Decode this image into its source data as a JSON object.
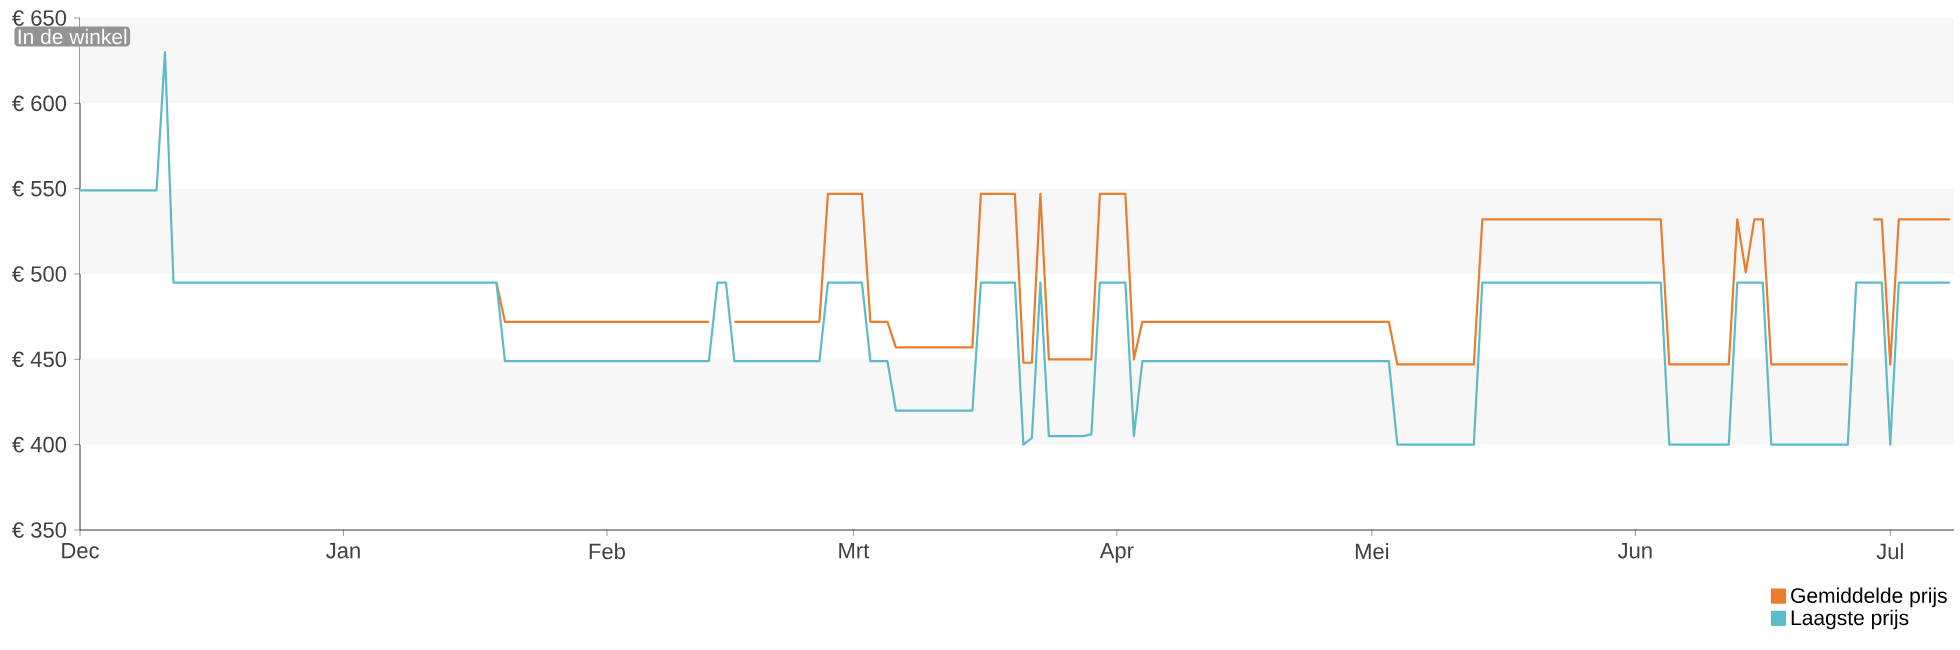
{
  "chart_data": {
    "type": "line",
    "annotations": [
      "In de winkel"
    ],
    "categories": [
      "Dec",
      null,
      null,
      null,
      null,
      null,
      null,
      null,
      null,
      null,
      null,
      null,
      null,
      null,
      null,
      null,
      null,
      null,
      null,
      null,
      null,
      null,
      null,
      null,
      null,
      null,
      null,
      null,
      null,
      null,
      null,
      "Jan",
      null,
      null,
      null,
      null,
      null,
      null,
      null,
      null,
      null,
      null,
      null,
      null,
      null,
      null,
      null,
      null,
      null,
      null,
      null,
      null,
      null,
      null,
      null,
      null,
      null,
      null,
      null,
      null,
      null,
      null,
      "Feb",
      null,
      null,
      null,
      null,
      null,
      null,
      null,
      null,
      null,
      null,
      null,
      null,
      null,
      null,
      null,
      null,
      null,
      null,
      null,
      null,
      null,
      null,
      null,
      null,
      null,
      null,
      null,
      null,
      "Mrt",
      null,
      null,
      null,
      null,
      null,
      null,
      null,
      null,
      null,
      null,
      null,
      null,
      null,
      null,
      null,
      null,
      null,
      null,
      null,
      null,
      null,
      null,
      null,
      null,
      null,
      null,
      null,
      null,
      null,
      null,
      "Apr",
      null,
      null,
      null,
      null,
      null,
      null,
      null,
      null,
      null,
      null,
      null,
      null,
      null,
      null,
      null,
      null,
      null,
      null,
      null,
      null,
      null,
      null,
      null,
      null,
      null,
      null,
      null,
      null,
      null,
      "Mei",
      null,
      null,
      null,
      null,
      null,
      null,
      null,
      null,
      null,
      null,
      null,
      null,
      null,
      null,
      null,
      null,
      null,
      null,
      null,
      null,
      null,
      null,
      null,
      null,
      null,
      null,
      null,
      null,
      null,
      null,
      "Jun",
      null,
      null,
      null,
      null,
      null,
      null,
      null,
      null,
      null,
      null,
      null,
      null,
      null,
      null,
      null,
      null,
      null,
      null,
      null,
      null,
      null,
      null,
      null,
      null,
      null,
      null,
      null,
      null,
      null,
      "Jul",
      null,
      null,
      null,
      null,
      null,
      null,
      null
    ],
    "series": [
      {
        "name": "Gemiddelde prijs",
        "color": "#e87d2c",
        "values": [
          null,
          null,
          null,
          null,
          null,
          null,
          null,
          null,
          null,
          null,
          null,
          null,
          null,
          null,
          null,
          null,
          null,
          null,
          null,
          null,
          null,
          null,
          null,
          null,
          null,
          null,
          null,
          null,
          null,
          null,
          null,
          null,
          null,
          null,
          null,
          null,
          null,
          null,
          null,
          null,
          null,
          null,
          null,
          null,
          null,
          null,
          null,
          null,
          null,
          495,
          472,
          472,
          472,
          472,
          472,
          472,
          472,
          472,
          472,
          472,
          472,
          472,
          472,
          472,
          472,
          472,
          472,
          472,
          472,
          472,
          472,
          472,
          472,
          472,
          472,
          null,
          null,
          472,
          472,
          472,
          472,
          472,
          472,
          472,
          472,
          472,
          472,
          472,
          547,
          547,
          547,
          547,
          547,
          472,
          472,
          472,
          457,
          457,
          457,
          457,
          457,
          457,
          457,
          457,
          457,
          457,
          547,
          547,
          547,
          547,
          547,
          448,
          448,
          547,
          450,
          450,
          450,
          450,
          450,
          450,
          547,
          547,
          547,
          547,
          450,
          472,
          472,
          472,
          472,
          472,
          472,
          472,
          472,
          472,
          472,
          472,
          472,
          472,
          472,
          472,
          472,
          472,
          472,
          472,
          472,
          472,
          472,
          472,
          472,
          472,
          472,
          472,
          472,
          472,
          472,
          447,
          447,
          447,
          447,
          447,
          447,
          447,
          447,
          447,
          447,
          532,
          532,
          532,
          532,
          532,
          532,
          532,
          532,
          532,
          532,
          532,
          532,
          532,
          532,
          532,
          532,
          532,
          532,
          532,
          532,
          532,
          532,
          447,
          447,
          447,
          447,
          447,
          447,
          447,
          447,
          532,
          501,
          532,
          532,
          447,
          447,
          447,
          447,
          447,
          447,
          447,
          447,
          447,
          447,
          null,
          null,
          532,
          532,
          447,
          532,
          532,
          532,
          532,
          532,
          532,
          532
        ]
      },
      {
        "name": "Laagste prijs",
        "color": "#5bbcc7",
        "values": [
          549,
          549,
          549,
          549,
          549,
          549,
          549,
          549,
          549,
          549,
          630,
          495,
          495,
          495,
          495,
          495,
          495,
          495,
          495,
          495,
          495,
          495,
          495,
          495,
          495,
          495,
          495,
          495,
          495,
          495,
          495,
          495,
          495,
          495,
          495,
          495,
          495,
          495,
          495,
          495,
          495,
          495,
          495,
          495,
          495,
          495,
          495,
          495,
          495,
          495,
          449,
          449,
          449,
          449,
          449,
          449,
          449,
          449,
          449,
          449,
          449,
          449,
          449,
          449,
          449,
          449,
          449,
          449,
          449,
          449,
          449,
          449,
          449,
          449,
          449,
          495,
          495,
          449,
          449,
          449,
          449,
          449,
          449,
          449,
          449,
          449,
          449,
          449,
          495,
          495,
          495,
          495,
          495,
          449,
          449,
          449,
          420,
          420,
          420,
          420,
          420,
          420,
          420,
          420,
          420,
          420,
          495,
          495,
          495,
          495,
          495,
          400,
          404,
          495,
          405,
          405,
          405,
          405,
          405,
          406,
          495,
          495,
          495,
          495,
          405,
          449,
          449,
          449,
          449,
          449,
          449,
          449,
          449,
          449,
          449,
          449,
          449,
          449,
          449,
          449,
          449,
          449,
          449,
          449,
          449,
          449,
          449,
          449,
          449,
          449,
          449,
          449,
          449,
          449,
          449,
          400,
          400,
          400,
          400,
          400,
          400,
          400,
          400,
          400,
          400,
          495,
          495,
          495,
          495,
          495,
          495,
          495,
          495,
          495,
          495,
          495,
          495,
          495,
          495,
          495,
          495,
          495,
          495,
          495,
          495,
          495,
          495,
          400,
          400,
          400,
          400,
          400,
          400,
          400,
          400,
          495,
          495,
          495,
          495,
          400,
          400,
          400,
          400,
          400,
          400,
          400,
          400,
          400,
          400,
          495,
          495,
          495,
          495,
          400,
          495,
          495,
          495,
          495,
          495,
          495,
          495
        ]
      }
    ],
    "ylim": [
      350,
      650
    ],
    "yticks": [
      {
        "value": 350,
        "label": "€ 350"
      },
      {
        "value": 400,
        "label": "€ 400"
      },
      {
        "value": 450,
        "label": "€ 450"
      },
      {
        "value": 500,
        "label": "€ 500"
      },
      {
        "value": 550,
        "label": "€ 550"
      },
      {
        "value": 600,
        "label": "€ 600"
      },
      {
        "value": 650,
        "label": "€ 650"
      }
    ],
    "bands": [
      {
        "axis": "y",
        "from": 400,
        "to": 450,
        "color": "#f7f7f7"
      },
      {
        "axis": "y",
        "from": 500,
        "to": 550,
        "color": "#f7f7f7"
      },
      {
        "axis": "y",
        "from": 600,
        "to": 650,
        "color": "#f7f7f7"
      }
    ],
    "grid": false,
    "legend": "bottom right",
    "line_style": "solid",
    "marker": "none"
  }
}
